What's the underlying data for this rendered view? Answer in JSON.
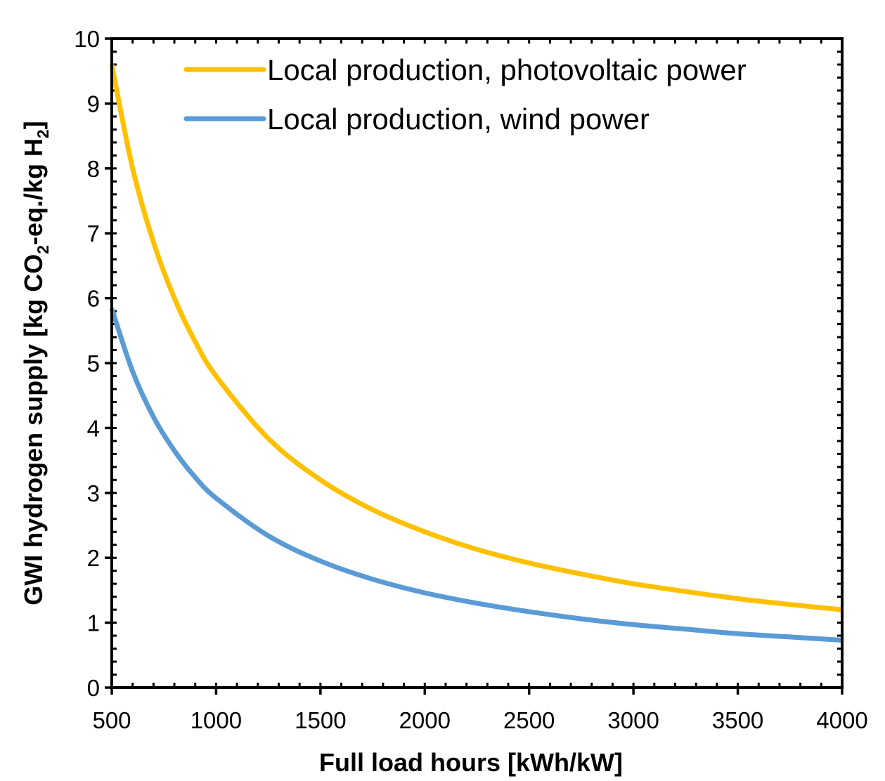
{
  "chart_data": {
    "type": "line",
    "title": "",
    "xlabel": "Full load hours [kWh/kW]",
    "ylabel": {
      "parts": [
        "GWI hydrogen supply [kg CO",
        "2",
        "-eq./kg H",
        "2",
        "]"
      ]
    },
    "xlim": [
      500,
      4000
    ],
    "ylim": [
      0,
      10
    ],
    "x_ticks": [
      "500",
      "1000",
      "1500",
      "2000",
      "2500",
      "3000",
      "3500",
      "4000"
    ],
    "y_ticks": [
      "0",
      "1",
      "2",
      "3",
      "4",
      "5",
      "6",
      "7",
      "8",
      "9",
      "10"
    ],
    "x_minor_step": 100,
    "y_minor_step": 0.2,
    "grid": false,
    "legend_position": "top-right",
    "x": [
      500,
      600,
      700,
      800,
      900,
      1000,
      1250,
      1500,
      1750,
      2000,
      2250,
      2500,
      2750,
      3000,
      3250,
      3500,
      3750,
      4000
    ],
    "series": [
      {
        "name": "Local production, photovoltaic power",
        "color": "#FFC000",
        "values": [
          9.6,
          8.0,
          6.86,
          6.0,
          5.33,
          4.8,
          3.84,
          3.2,
          2.74,
          2.4,
          2.13,
          1.92,
          1.75,
          1.6,
          1.48,
          1.37,
          1.28,
          1.2
        ]
      },
      {
        "name": "Local production, wind power",
        "color": "#5B9BD5",
        "values": [
          5.84,
          4.87,
          4.17,
          3.65,
          3.24,
          2.92,
          2.34,
          1.95,
          1.67,
          1.46,
          1.3,
          1.17,
          1.06,
          0.97,
          0.9,
          0.83,
          0.78,
          0.73
        ]
      }
    ]
  }
}
